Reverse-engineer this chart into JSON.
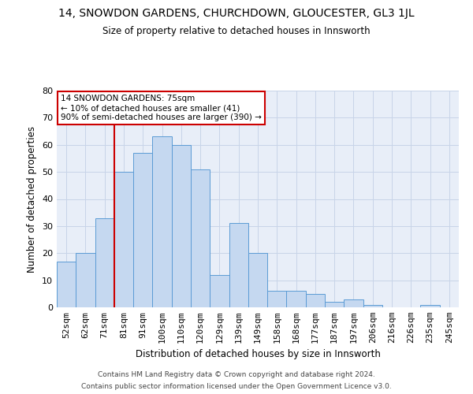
{
  "title": "14, SNOWDON GARDENS, CHURCHDOWN, GLOUCESTER, GL3 1JL",
  "subtitle": "Size of property relative to detached houses in Innsworth",
  "xlabel": "Distribution of detached houses by size in Innsworth",
  "ylabel": "Number of detached properties",
  "categories": [
    "52sqm",
    "62sqm",
    "71sqm",
    "81sqm",
    "91sqm",
    "100sqm",
    "110sqm",
    "120sqm",
    "129sqm",
    "139sqm",
    "149sqm",
    "158sqm",
    "168sqm",
    "177sqm",
    "187sqm",
    "197sqm",
    "206sqm",
    "216sqm",
    "226sqm",
    "235sqm",
    "245sqm"
  ],
  "values": [
    17,
    20,
    33,
    50,
    57,
    63,
    60,
    51,
    12,
    31,
    20,
    6,
    6,
    5,
    2,
    3,
    1,
    0,
    0,
    1,
    0
  ],
  "bar_color": "#c5d8f0",
  "bar_edge_color": "#5b9bd5",
  "grid_color": "#c8d4e8",
  "background_color": "#e8eef8",
  "ylim": [
    0,
    80
  ],
  "yticks": [
    0,
    10,
    20,
    30,
    40,
    50,
    60,
    70,
    80
  ],
  "vline_pos": 2.5,
  "annotation_text": "14 SNOWDON GARDENS: 75sqm\n← 10% of detached houses are smaller (41)\n90% of semi-detached houses are larger (390) →",
  "annotation_box_color": "#ffffff",
  "annotation_box_edge_color": "#cc0000",
  "annotation_text_color": "#000000",
  "vline_color": "#cc0000",
  "footer_line1": "Contains HM Land Registry data © Crown copyright and database right 2024.",
  "footer_line2": "Contains public sector information licensed under the Open Government Licence v3.0."
}
